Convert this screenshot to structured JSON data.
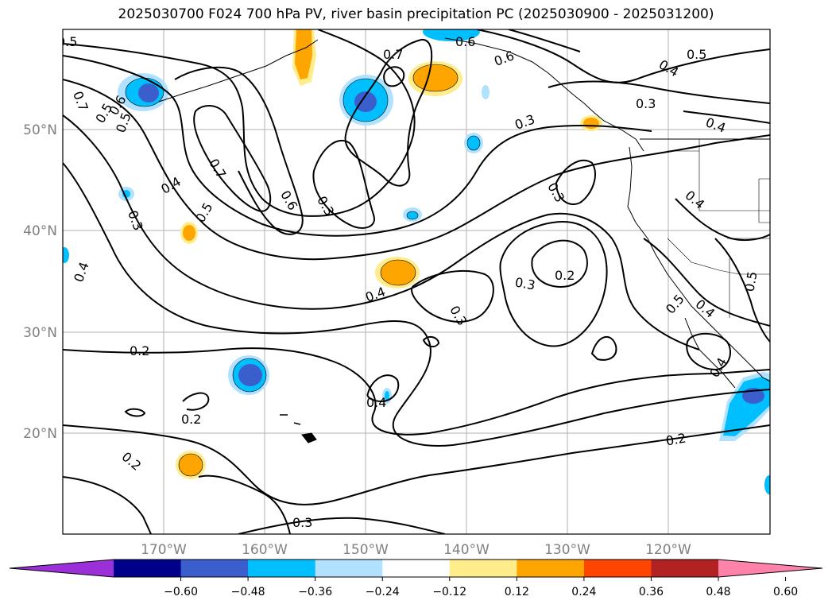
{
  "title": "2025030700 F024 700 hPa PV, river basin precipitation PC (2025030900 - 2025031200)",
  "map": {
    "lon_ticks": [
      "170°W",
      "160°W",
      "150°W",
      "140°W",
      "130°W",
      "120°W"
    ],
    "lat_ticks": [
      "50°N",
      "40°N",
      "30°N",
      "20°N"
    ],
    "contour_labels": [
      {
        "text": "0.7"
      },
      {
        "text": "0.6"
      },
      {
        "text": "0.5"
      },
      {
        "text": "0.5"
      },
      {
        "text": "0.4"
      },
      {
        "text": "0.7"
      },
      {
        "text": "0.5"
      },
      {
        "text": "0.6"
      },
      {
        "text": "0.3"
      },
      {
        "text": "0.4"
      },
      {
        "text": "0.5"
      },
      {
        "text": "0.4"
      },
      {
        "text": "0.3"
      },
      {
        "text": "0.3"
      },
      {
        "text": "0.4"
      },
      {
        "text": "0.7"
      },
      {
        "text": "0.6"
      },
      {
        "text": "0.5"
      },
      {
        "text": "0.6"
      },
      {
        "text": "0.3"
      },
      {
        "text": "0.3"
      },
      {
        "text": "0.2"
      },
      {
        "text": "0.3"
      },
      {
        "text": "0.4"
      },
      {
        "text": "0.3"
      },
      {
        "text": "0.2"
      },
      {
        "text": "0.2"
      },
      {
        "text": "0.4"
      },
      {
        "text": "0.2"
      },
      {
        "text": "0.2"
      },
      {
        "text": "0.4"
      },
      {
        "text": "0.4"
      },
      {
        "text": "0.5"
      },
      {
        "text": "0.5"
      },
      {
        "text": "0.4"
      },
      {
        "text": "0.3"
      }
    ]
  },
  "colorbar": {
    "colors": [
      "#9b30d9",
      "#00008b",
      "#3a5fcd",
      "#00bfff",
      "#b0e2ff",
      "#ffffff",
      "#ffec8b",
      "#ffa500",
      "#ff4500",
      "#b22222",
      "#ff82ab"
    ],
    "labels": [
      "−0.60",
      "−0.48",
      "−0.36",
      "−0.24",
      "−0.12",
      "0.12",
      "0.24",
      "0.36",
      "0.48",
      "0.60"
    ]
  }
}
